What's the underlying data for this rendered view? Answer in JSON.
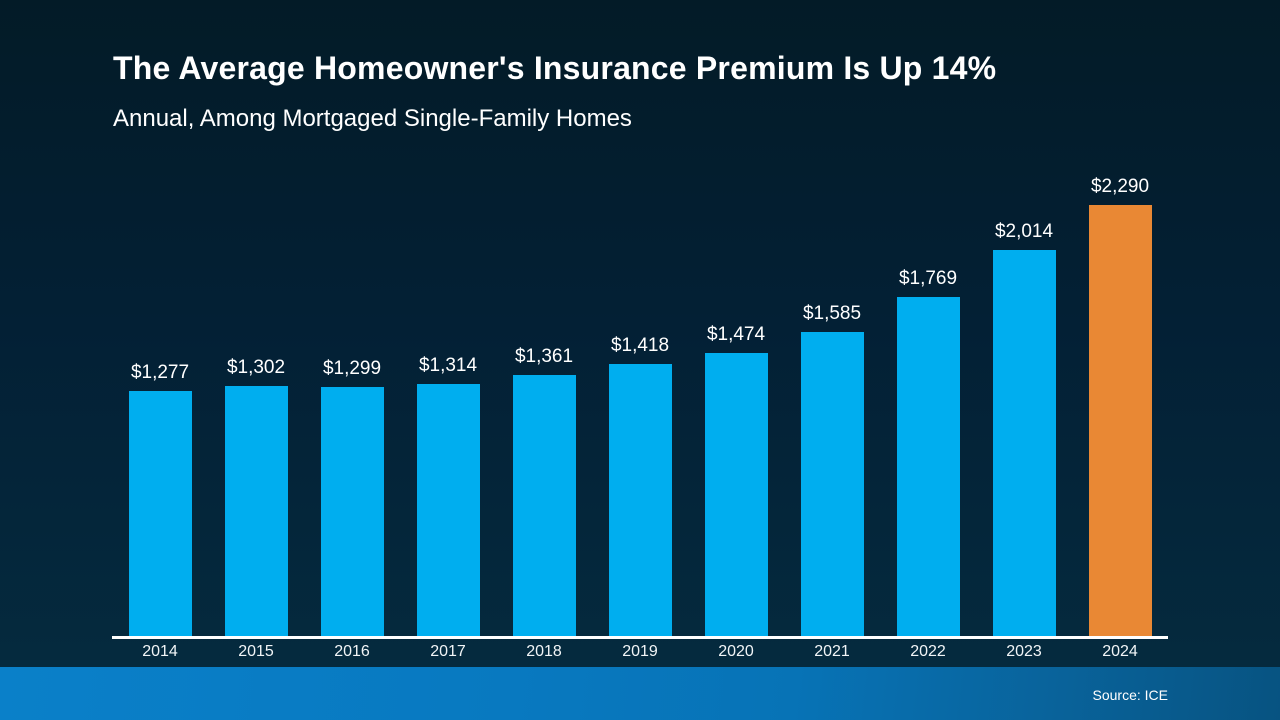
{
  "header": {
    "title": "The Average Homeowner's Insurance Premium Is Up 14%",
    "subtitle": "Annual, Among Mortgaged Single-Family Homes"
  },
  "footer": {
    "source": "Source: ICE"
  },
  "colors": {
    "bar": "#00AEEF",
    "highlight_bar": "#E98834",
    "background_top": "#031B27",
    "background_bottom": "#05293C",
    "baseline": "#FFFFFF",
    "text": "#FFFFFF",
    "footer_band_left": "#0A80C9",
    "footer_band_right": "#075381"
  },
  "chart_data": {
    "type": "bar",
    "title": "The Average Homeowner's Insurance Premium Is Up 14%",
    "subtitle": "Annual, Among Mortgaged Single-Family Homes",
    "categories": [
      "2014",
      "2015",
      "2016",
      "2017",
      "2018",
      "2019",
      "2020",
      "2021",
      "2022",
      "2023",
      "2024"
    ],
    "values": [
      1277,
      1302,
      1299,
      1314,
      1361,
      1418,
      1474,
      1585,
      1769,
      2014,
      2290
    ],
    "value_labels": [
      "$1,277",
      "$1,302",
      "$1,299",
      "$1,314",
      "$1,361",
      "$1,418",
      "$1,474",
      "$1,585",
      "$1,769",
      "$2,014",
      "$2,290"
    ],
    "highlight_index": 10,
    "xlabel": "",
    "ylabel": "",
    "ylim": [
      0,
      2400
    ],
    "grid": false,
    "legend": null,
    "annotation": "2024 bar highlighted in orange; all other years blue"
  }
}
